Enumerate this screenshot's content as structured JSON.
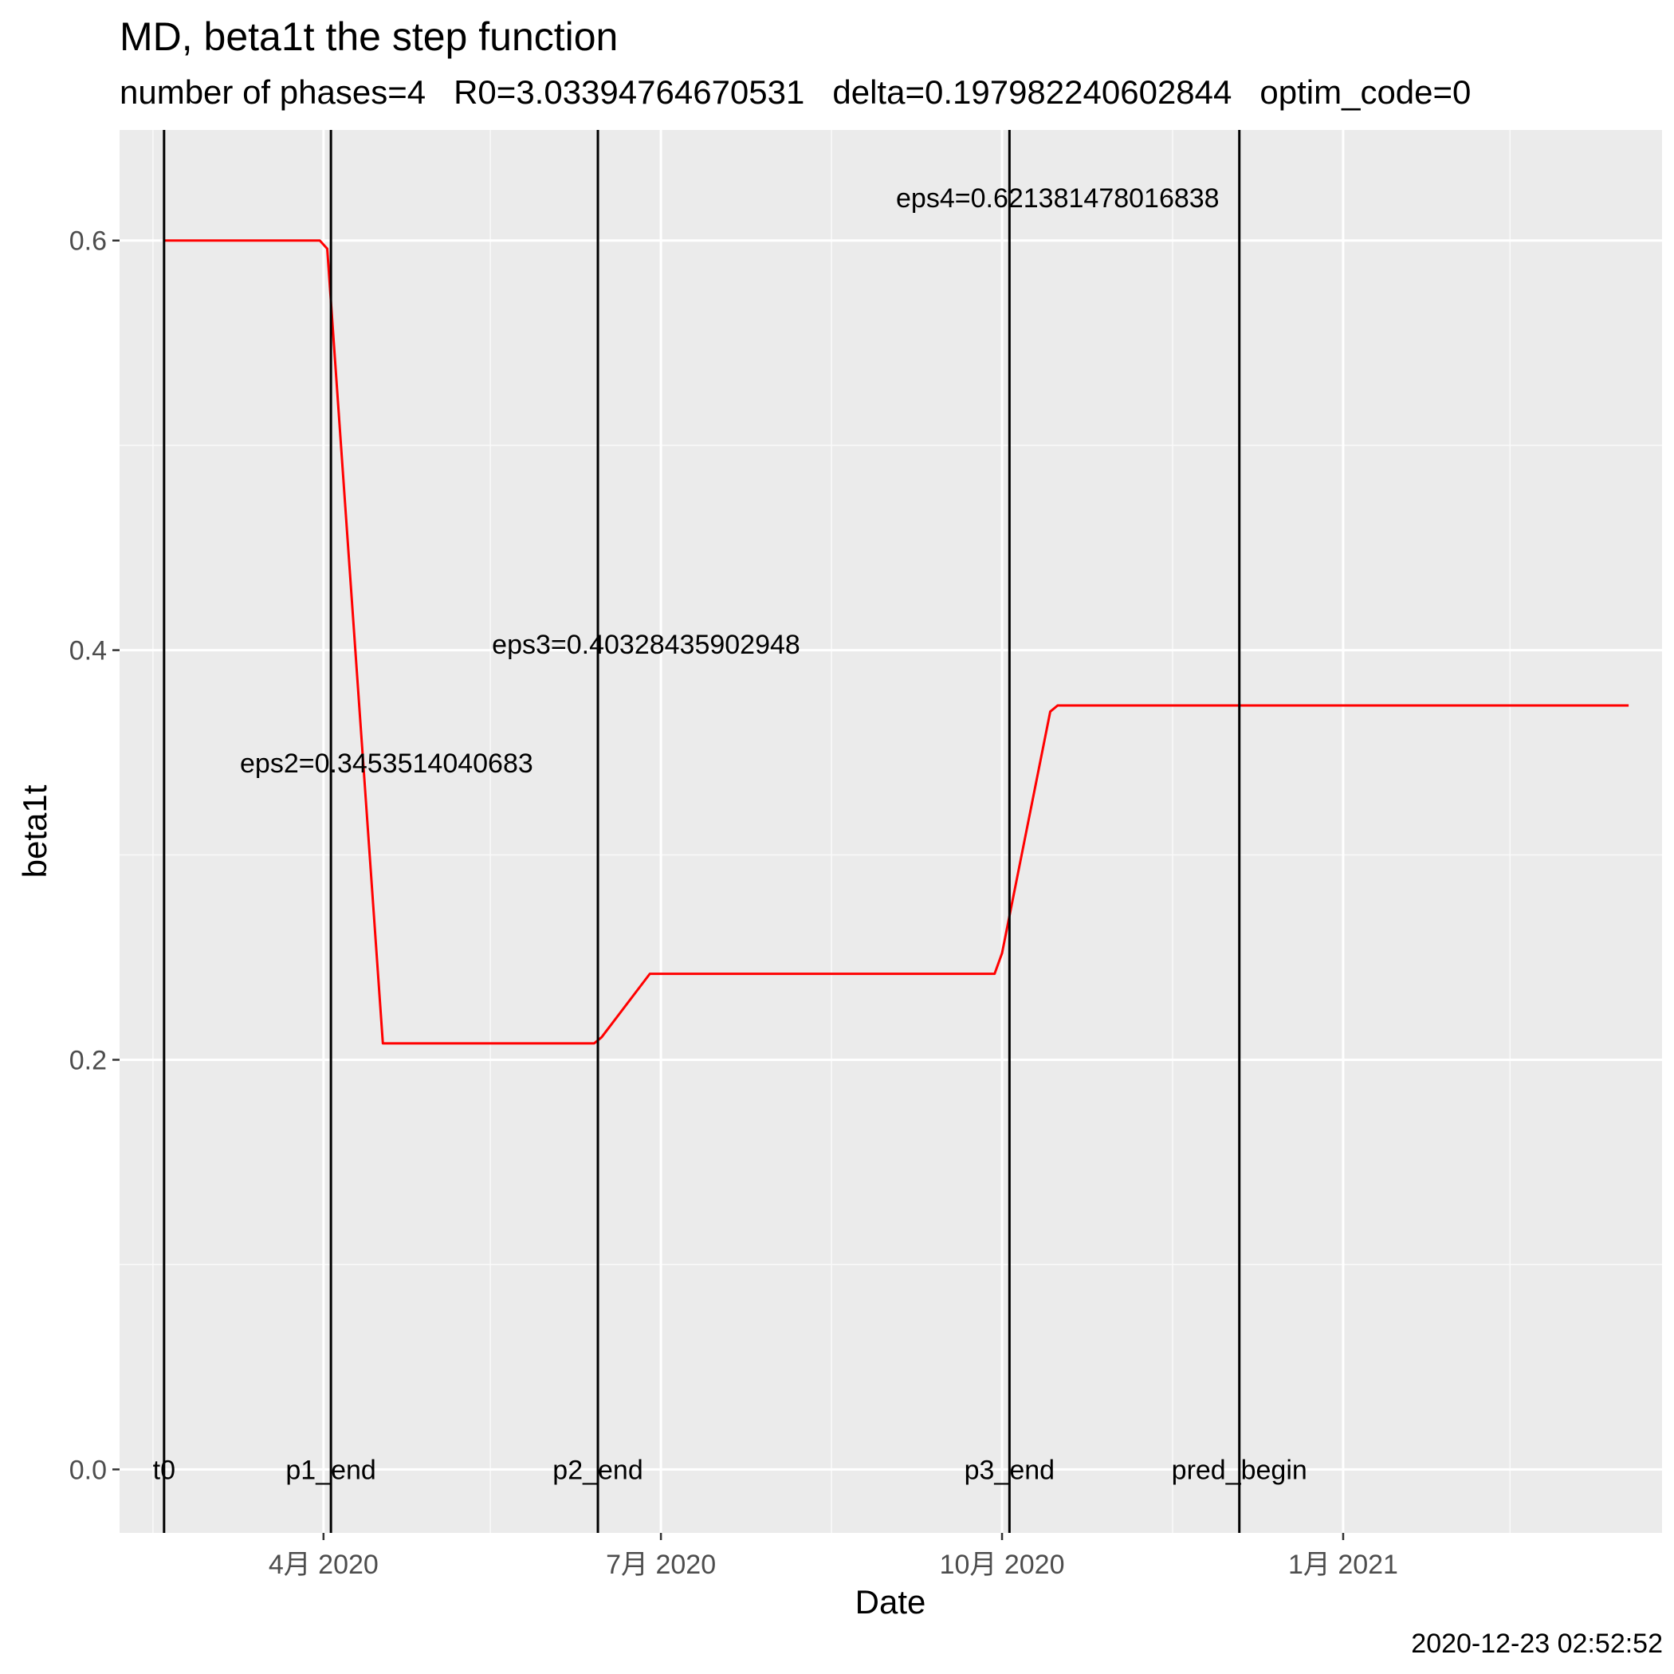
{
  "chart_data": {
    "type": "line",
    "title": "MD, beta1t the step function",
    "subtitle": "number of phases=4   R0=3.03394764670531   delta=0.197982240602844   optim_code=0",
    "xlabel": "Date",
    "ylabel": "beta1t",
    "caption": "2020-12-23 02:52:52",
    "xlim": [
      "2020-02-06",
      "2021-03-28"
    ],
    "ylim": [
      -0.031,
      0.654
    ],
    "x_ticks": [
      {
        "date": "2020-04-01",
        "label": "4月 2020"
      },
      {
        "date": "2020-07-01",
        "label": "7月 2020"
      },
      {
        "date": "2020-10-01",
        "label": "10月 2020"
      },
      {
        "date": "2021-01-01",
        "label": "1月 2021"
      }
    ],
    "x_minor_ticks": [
      "2020-02-15",
      "2020-05-16",
      "2020-08-16",
      "2020-11-16",
      "2021-02-15"
    ],
    "y_ticks": [
      {
        "value": 0.0,
        "label": "0.0"
      },
      {
        "value": 0.2,
        "label": "0.2"
      },
      {
        "value": 0.4,
        "label": "0.4"
      },
      {
        "value": 0.6,
        "label": "0.6"
      }
    ],
    "y_minor_ticks": [
      0.1,
      0.3,
      0.5
    ],
    "grid": true,
    "series": [
      {
        "color": "#ff0000",
        "points": [
          {
            "x": "2020-02-18",
            "y": 0.6
          },
          {
            "x": "2020-03-31",
            "y": 0.6
          },
          {
            "x": "2020-04-02",
            "y": 0.596
          },
          {
            "x": "2020-04-17",
            "y": 0.208
          },
          {
            "x": "2020-06-13",
            "y": 0.208
          },
          {
            "x": "2020-06-15",
            "y": 0.211
          },
          {
            "x": "2020-06-28",
            "y": 0.242
          },
          {
            "x": "2020-09-29",
            "y": 0.242
          },
          {
            "x": "2020-10-01",
            "y": 0.252
          },
          {
            "x": "2020-10-14",
            "y": 0.37
          },
          {
            "x": "2020-10-16",
            "y": 0.373
          },
          {
            "x": "2021-03-19",
            "y": 0.373
          }
        ]
      }
    ],
    "vlines": [
      {
        "x": "2020-02-18",
        "label": "t0"
      },
      {
        "x": "2020-04-03",
        "label": "p1_end"
      },
      {
        "x": "2020-06-14",
        "label": "p2_end"
      },
      {
        "x": "2020-10-03",
        "label": "p3_end"
      },
      {
        "x": "2020-12-04",
        "label": "pred_begin"
      }
    ],
    "annotations": [
      {
        "x": "2020-04-18",
        "y": 0.345,
        "text": "eps2=0.3453514040683"
      },
      {
        "x": "2020-06-27",
        "y": 0.403,
        "text": "eps3=0.40328435902948"
      },
      {
        "x": "2020-10-16",
        "y": 0.621,
        "text": "eps4=0.621381478016838"
      }
    ]
  }
}
